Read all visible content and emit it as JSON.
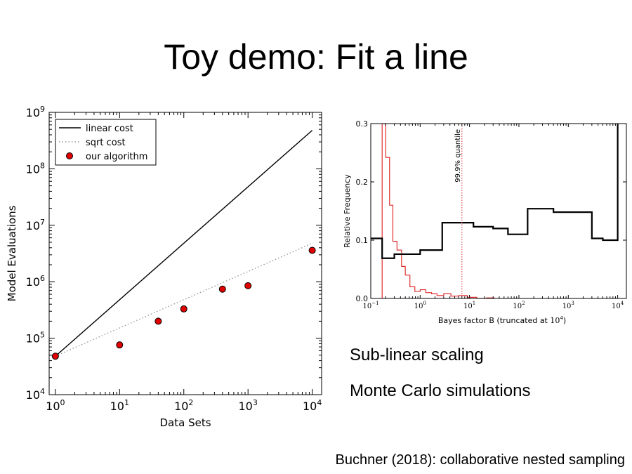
{
  "slide": {
    "title": "Toy demo: Fit a line",
    "bullets": [
      "Sub-linear scaling",
      "Monte Carlo simulations"
    ],
    "citation": "Buchner (2018): collaborative nested sampling"
  },
  "colors": {
    "marker_fill": "#e00000",
    "histogram_mc": "#e03030",
    "quantile_line": "#e05050"
  },
  "chart_data": [
    {
      "type": "line",
      "xlabel": "Data Sets",
      "ylabel": "Model Evaluations",
      "xscale": "log",
      "yscale": "log",
      "xlim": [
        0.8,
        14000
      ],
      "ylim": [
        10000,
        1000000000
      ],
      "legend_position": "top-left",
      "series": [
        {
          "name": "linear cost",
          "style": "solid",
          "x": [
            1,
            10000
          ],
          "y": [
            48000,
            480000000
          ]
        },
        {
          "name": "sqrt cost",
          "style": "dotted",
          "x": [
            1,
            10000
          ],
          "y": [
            48000,
            4800000
          ]
        },
        {
          "name": "our algorithm",
          "style": "markers",
          "x": [
            1,
            10,
            40,
            100,
            400,
            1000,
            10000
          ],
          "y": [
            48000,
            76000,
            200000,
            330000,
            740000,
            850000,
            3600000
          ]
        }
      ]
    },
    {
      "type": "histogram",
      "xlabel": "Bayes factor B (truncated at ",
      "xlabel_math": "10",
      "xlabel_exp": "4",
      "xlabel_end": ")",
      "ylabel": "Relative Frequency",
      "xscale": "log",
      "xlim": [
        0.1,
        15000
      ],
      "ylim": [
        0,
        0.3
      ],
      "yticks": [
        "0.0",
        "0.1",
        "0.2",
        "0.3"
      ],
      "annotation": "99.9% quantile",
      "quantile_x": 7,
      "series": [
        {
          "style": "black-step",
          "edges": [
            0.1,
            0.17,
            0.3,
            1,
            2.8,
            12,
            30,
            60,
            150,
            500,
            3000,
            5000,
            10000
          ],
          "values": [
            0.103,
            0.069,
            0.076,
            0.083,
            0.13,
            0.123,
            0.12,
            0.11,
            0.154,
            0.148,
            0.103,
            0.1,
            0.3
          ]
        },
        {
          "style": "red-step",
          "edges": [
            0.17,
            0.2,
            0.24,
            0.28,
            0.34,
            0.42,
            0.5,
            0.62,
            0.78,
            1,
            1.3,
            1.7,
            2.2,
            3,
            4.2,
            6,
            9,
            14,
            22,
            32
          ],
          "values": [
            0.3,
            0.242,
            0.16,
            0.098,
            0.083,
            0.055,
            0.04,
            0.02,
            0.012,
            0.015,
            0.01,
            0.008,
            0.005,
            0.008,
            0.004,
            0.005,
            0.002,
            0.0,
            0.001
          ]
        }
      ]
    }
  ]
}
